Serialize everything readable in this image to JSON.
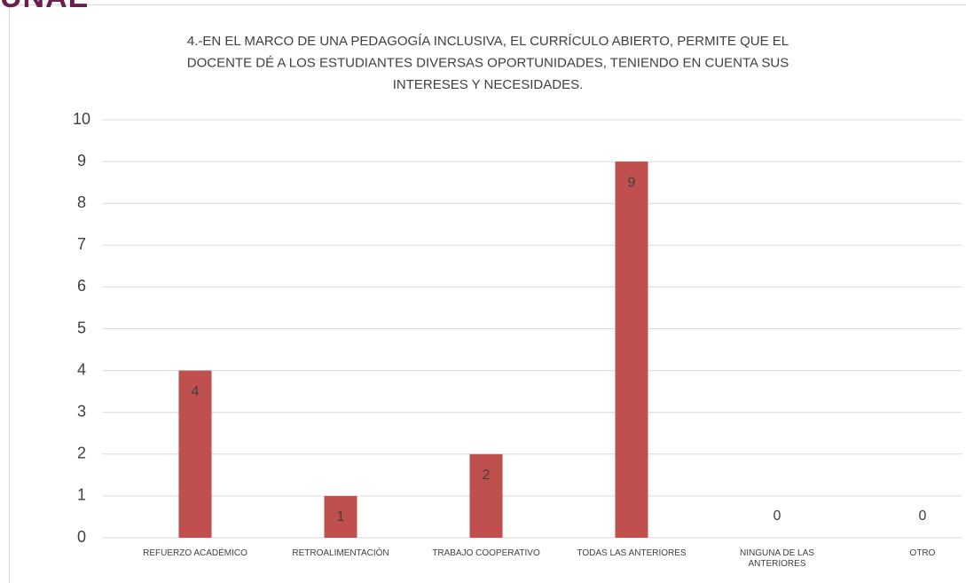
{
  "logo": "UNAE",
  "chart_data": {
    "type": "bar",
    "title": [
      "4.-EN EL MARCO DE UNA PEDAGOGÍA INCLUSIVA, EL CURRÍCULO ABIERTO, PERMITE QUE EL",
      "DOCENTE DÉ A LOS ESTUDIANTES DIVERSAS OPORTUNIDADES, TENIENDO EN CUENTA SUS",
      "INTERESES Y NECESIDADES."
    ],
    "categories": [
      "REFUERZO ACADÉMICO",
      "RETROALIMENTACIÓN",
      "TRABAJO COOPERATIVO",
      "TODAS LAS ANTERIORES",
      "NINGUNA DE LAS ANTERIORES",
      "OTRO"
    ],
    "values": [
      4,
      1,
      2,
      9,
      0,
      0
    ],
    "color": "#c0504d",
    "ylim": [
      0,
      10
    ],
    "yticks": [
      0,
      1,
      2,
      3,
      4,
      5,
      6,
      7,
      8,
      9,
      10
    ],
    "grid": true
  }
}
